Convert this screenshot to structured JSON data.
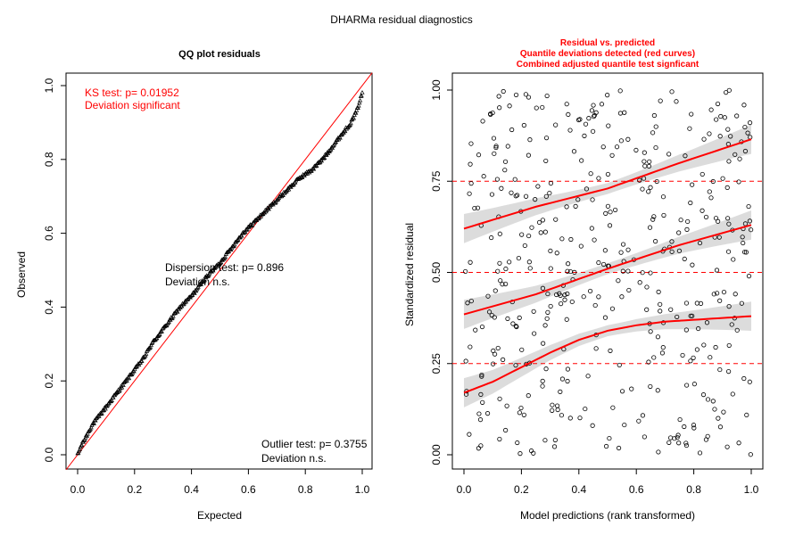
{
  "page_title": "DHARMa residual diagnostics",
  "colors": {
    "accent": "#ff0000",
    "points": "#000000",
    "band": "#d3d3d3",
    "axis": "#000000"
  },
  "chart_data": [
    {
      "type": "scatter",
      "title": "QQ plot residuals",
      "xlabel": "Expected",
      "ylabel": "Observed",
      "xlim": [
        0,
        1
      ],
      "ylim": [
        0,
        1
      ],
      "xticks": [
        "0.0",
        "0.2",
        "0.4",
        "0.6",
        "0.8",
        "1.0"
      ],
      "yticks": [
        "0.0",
        "0.2",
        "0.4",
        "0.6",
        "0.8",
        "1.0"
      ],
      "reference_line": {
        "slope": 1,
        "intercept": 0
      },
      "qq_curve": {
        "x": [
          0.0,
          0.01,
          0.03,
          0.05,
          0.08,
          0.12,
          0.16,
          0.2,
          0.23,
          0.26,
          0.3,
          0.33,
          0.36,
          0.4,
          0.45,
          0.5,
          0.54,
          0.58,
          0.62,
          0.66,
          0.7,
          0.74,
          0.78,
          0.82,
          0.86,
          0.9,
          0.93,
          0.96,
          0.98,
          1.0
        ],
        "y": [
          0.0,
          0.02,
          0.05,
          0.08,
          0.11,
          0.15,
          0.19,
          0.23,
          0.26,
          0.3,
          0.34,
          0.37,
          0.4,
          0.43,
          0.48,
          0.52,
          0.56,
          0.6,
          0.63,
          0.66,
          0.69,
          0.72,
          0.75,
          0.77,
          0.8,
          0.84,
          0.87,
          0.9,
          0.93,
          0.98
        ]
      },
      "annotations": {
        "ks_line1": "KS test: p= 0.01952",
        "ks_line2": "Deviation  significant",
        "disp_line1": "Dispersion test: p= 0.896",
        "disp_line2": "Deviation  n.s.",
        "outlier_line1": "Outlier test: p= 0.3755",
        "outlier_line2": "Deviation  n.s."
      }
    },
    {
      "type": "scatter",
      "title_lines": [
        "Residual vs. predicted",
        "Quantile deviations detected (red curves)",
        "Combined adjusted quantile test signficant"
      ],
      "xlabel": "Model predictions (rank transformed)",
      "ylabel": "Standardized residual",
      "xlim": [
        0,
        1
      ],
      "ylim": [
        0,
        1
      ],
      "xticks": [
        "0.0",
        "0.2",
        "0.4",
        "0.6",
        "0.8",
        "1.0"
      ],
      "yticks": [
        "0.00",
        "0.25",
        "0.50",
        "0.75",
        "1.00"
      ],
      "reference_lines": [
        0.25,
        0.5,
        0.75
      ],
      "quantile_curves": [
        {
          "quantile": 0.75,
          "x": [
            0,
            0.25,
            0.5,
            0.75,
            1.0
          ],
          "y": [
            0.62,
            0.68,
            0.73,
            0.8,
            0.865
          ]
        },
        {
          "quantile": 0.5,
          "x": [
            0,
            0.25,
            0.5,
            0.75,
            1.0
          ],
          "y": [
            0.385,
            0.44,
            0.51,
            0.575,
            0.63
          ]
        },
        {
          "quantile": 0.25,
          "x": [
            0,
            0.1,
            0.2,
            0.3,
            0.4,
            0.5,
            0.6,
            0.7,
            0.8,
            0.9,
            1.0
          ],
          "y": [
            0.17,
            0.2,
            0.24,
            0.28,
            0.315,
            0.34,
            0.355,
            0.365,
            0.37,
            0.375,
            0.38
          ]
        }
      ]
    }
  ]
}
